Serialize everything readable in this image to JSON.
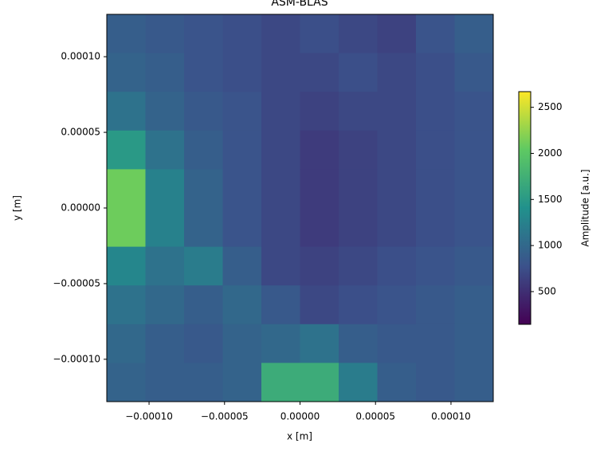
{
  "chart_data": {
    "type": "heatmap",
    "title": "ASM-BLAS",
    "x_label": "x [m]",
    "y_label": "y [m]",
    "xlim": [
      -0.000128,
      0.000128
    ],
    "ylim": [
      -0.000128,
      0.000128
    ],
    "xticks": [
      {
        "value": -0.0001,
        "label": "−0.00010"
      },
      {
        "value": -5e-05,
        "label": "−0.00005"
      },
      {
        "value": 0,
        "label": "0.00000"
      },
      {
        "value": 5e-05,
        "label": "0.00005"
      },
      {
        "value": 0.0001,
        "label": "0.00010"
      }
    ],
    "yticks": [
      {
        "value": -0.0001,
        "label": "−0.00010"
      },
      {
        "value": -5e-05,
        "label": "−0.00005"
      },
      {
        "value": 0,
        "label": "0.00000"
      },
      {
        "value": 5e-05,
        "label": "0.00005"
      },
      {
        "value": 0.0001,
        "label": "0.00010"
      }
    ],
    "z": [
      [
        900,
        850,
        800,
        750,
        700,
        750,
        700,
        650,
        800,
        900
      ],
      [
        950,
        900,
        800,
        750,
        700,
        700,
        750,
        700,
        750,
        850
      ],
      [
        1100,
        950,
        850,
        800,
        700,
        650,
        700,
        700,
        750,
        800
      ],
      [
        1500,
        1100,
        900,
        800,
        700,
        600,
        650,
        700,
        750,
        800
      ],
      [
        2100,
        1250,
        950,
        800,
        700,
        600,
        650,
        700,
        750,
        800
      ],
      [
        2100,
        1250,
        950,
        800,
        700,
        600,
        650,
        700,
        750,
        800
      ],
      [
        1300,
        1100,
        1200,
        900,
        700,
        650,
        700,
        750,
        800,
        850
      ],
      [
        1100,
        1000,
        900,
        1000,
        850,
        700,
        750,
        800,
        850,
        900
      ],
      [
        1000,
        900,
        850,
        950,
        1000,
        1100,
        900,
        850,
        850,
        900
      ],
      [
        950,
        900,
        900,
        950,
        1700,
        1700,
        1200,
        900,
        850,
        900
      ]
    ],
    "colorbar_label": "Amplitude [a.u.]",
    "clim": [
      145,
      2670
    ],
    "cticks": [
      500,
      1000,
      1500,
      2000,
      2500
    ]
  }
}
